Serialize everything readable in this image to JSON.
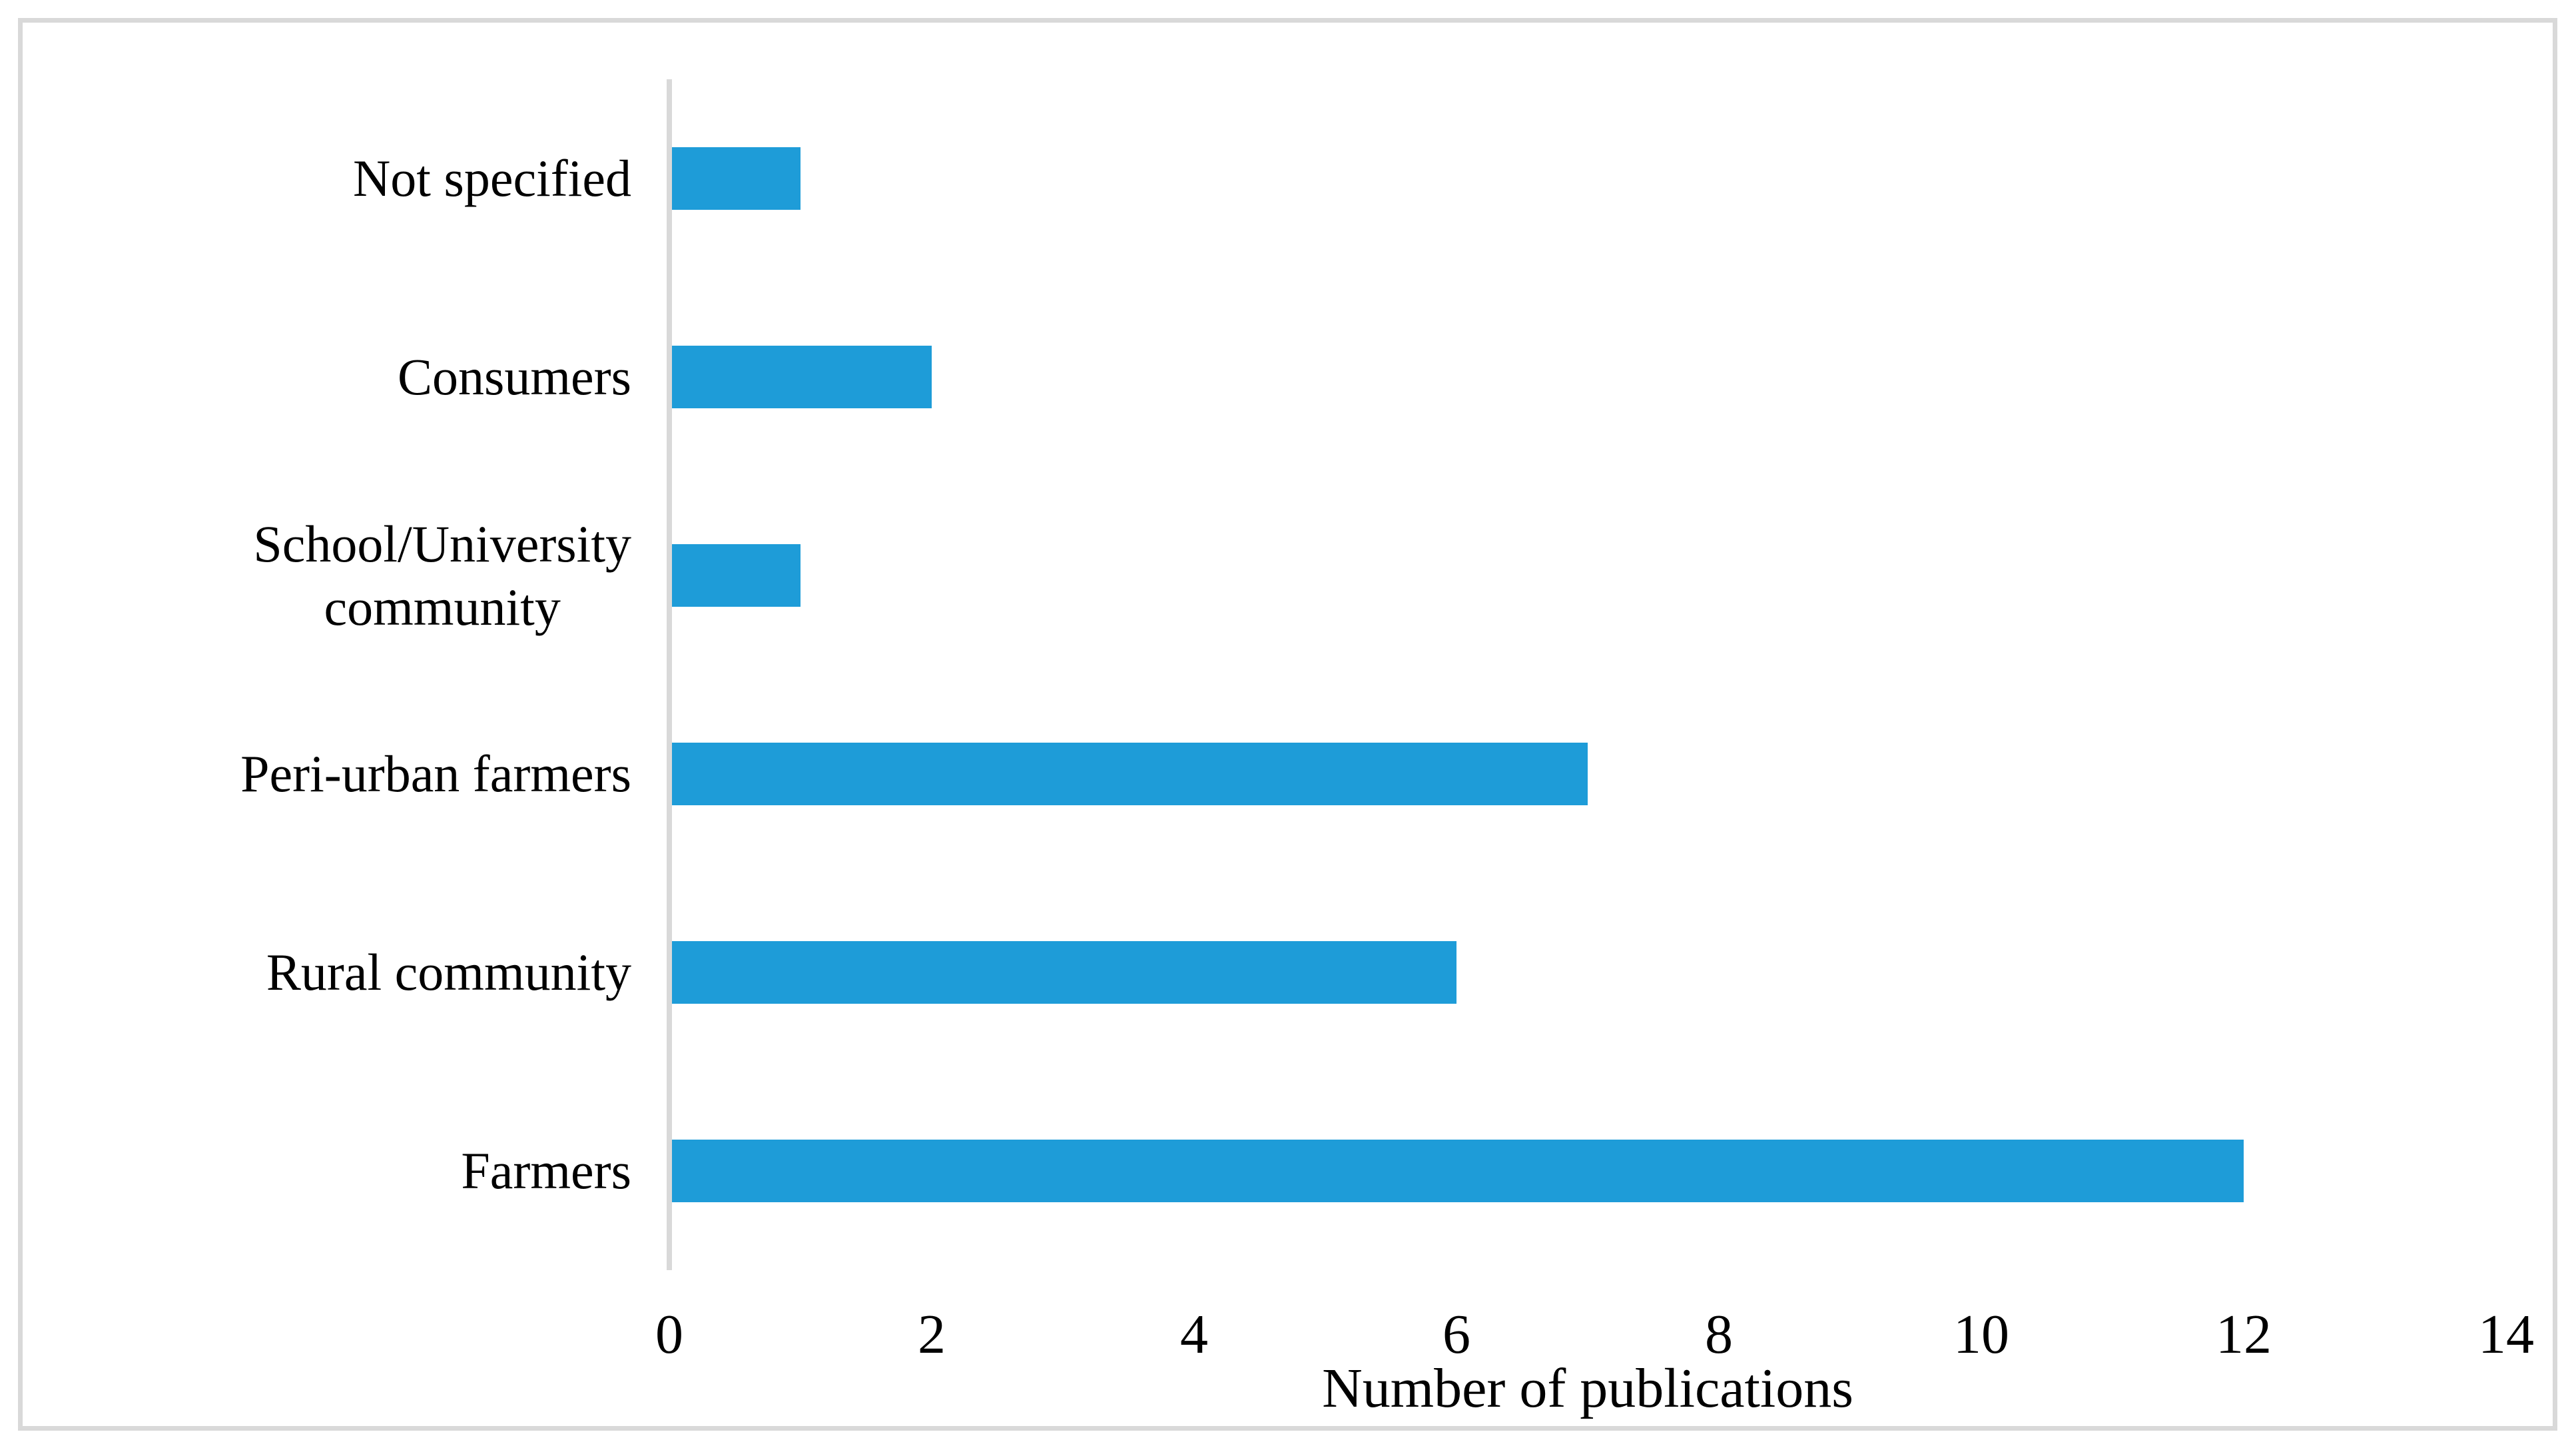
{
  "chart_data": {
    "type": "bar",
    "orientation": "horizontal",
    "categories": [
      "Not specified",
      "Consumers",
      "School/University\ncommunity",
      "Peri-urban farmers",
      "Rural community",
      "Farmers"
    ],
    "values": [
      1,
      2,
      1,
      7,
      6,
      12
    ],
    "xlabel": "Number of publications",
    "x_ticks": [
      0,
      2,
      4,
      6,
      8,
      10,
      12,
      14
    ],
    "xlim": [
      0,
      14
    ],
    "grid": false,
    "legend": "none",
    "layout_note": "categories listed top to bottom as displayed",
    "colors": {
      "bar": "#1E9CD8",
      "axis_line": "#D9D9D9",
      "frame_border": "#D9D9D9",
      "text": "#000000",
      "background": "#FFFFFF"
    }
  }
}
